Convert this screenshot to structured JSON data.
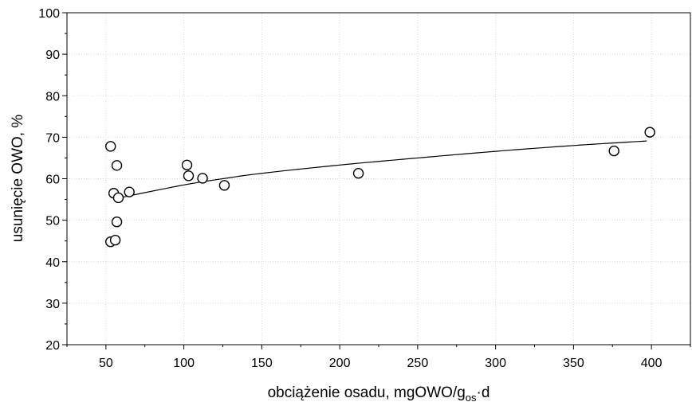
{
  "chart_data": {
    "type": "scatter",
    "xlabel": {
      "main": "obciążenie osadu, mgOWO/g",
      "sub": "os",
      "tail": "·d"
    },
    "ylabel": "usunięcie OWO, %",
    "xlim": [
      25,
      425
    ],
    "ylim": [
      20,
      100
    ],
    "xticks": [
      50,
      100,
      150,
      200,
      250,
      300,
      350,
      400
    ],
    "yticks": [
      20,
      30,
      40,
      50,
      60,
      70,
      80,
      90,
      100
    ],
    "grid": true,
    "series": [
      {
        "points": [
          {
            "x": 53,
            "y": 67.8
          },
          {
            "x": 53,
            "y": 44.8
          },
          {
            "x": 55,
            "y": 56.5
          },
          {
            "x": 56,
            "y": 45.2
          },
          {
            "x": 57,
            "y": 63.2
          },
          {
            "x": 57,
            "y": 49.6
          },
          {
            "x": 58,
            "y": 55.4
          },
          {
            "x": 65,
            "y": 56.8
          },
          {
            "x": 102,
            "y": 63.3
          },
          {
            "x": 103,
            "y": 60.7
          },
          {
            "x": 112,
            "y": 60.1
          },
          {
            "x": 126,
            "y": 58.4
          },
          {
            "x": 212,
            "y": 61.3
          },
          {
            "x": 376,
            "y": 66.7
          },
          {
            "x": 399,
            "y": 71.2
          }
        ]
      }
    ],
    "trendline": {
      "type": "logarithmic",
      "x_range": [
        60,
        397
      ],
      "points": [
        {
          "x": 60,
          "y": 55.5
        },
        {
          "x": 100,
          "y": 58.5
        },
        {
          "x": 125,
          "y": 60.0
        },
        {
          "x": 150,
          "y": 61.3
        },
        {
          "x": 200,
          "y": 63.3
        },
        {
          "x": 250,
          "y": 65.0
        },
        {
          "x": 300,
          "y": 66.6
        },
        {
          "x": 350,
          "y": 68.0
        },
        {
          "x": 397,
          "y": 69.1
        }
      ]
    }
  }
}
